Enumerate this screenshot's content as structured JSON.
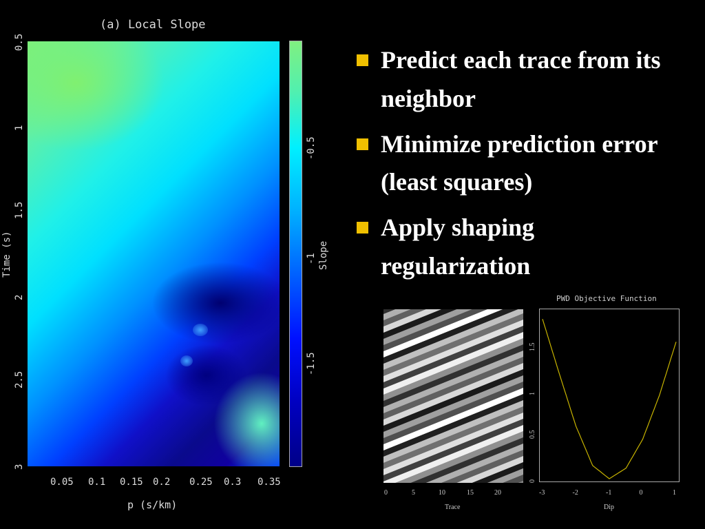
{
  "left_panel": {
    "title": "(a) Local Slope",
    "x_label": "p (s/km)",
    "y_label": "Time (s)",
    "x_ticks": [
      "0.05",
      "0.1",
      "0.15",
      "0.2",
      "0.25",
      "0.3",
      "0.35"
    ],
    "y_ticks": [
      "0.5",
      "1",
      "1.5",
      "2",
      "2.5",
      "3"
    ],
    "colorbar_label": "Slope",
    "colorbar_ticks": [
      "-0.5",
      "-1",
      "-1.5"
    ]
  },
  "bullets": [
    {
      "text": "Predict each trace from its neighbor"
    },
    {
      "text": "Minimize prediction error (least squares)"
    },
    {
      "text": "Apply shaping regularization"
    }
  ],
  "trace_panel": {
    "x_label": "Trace",
    "x_ticks": [
      "0",
      "5",
      "10",
      "15",
      "20"
    ]
  },
  "chart_data": {
    "type": "line",
    "title": "PWD Objective Function",
    "xlabel": "Dip",
    "ylabel": "",
    "x_ticks": [
      "-3",
      "-2",
      "-1",
      "0",
      "1"
    ],
    "y_ticks": [
      "0",
      "0.5",
      "1",
      "1.5"
    ],
    "xlim": [
      -3,
      1
    ],
    "ylim": [
      0,
      1.9
    ],
    "series": [
      {
        "x": [
          -3,
          -2.5,
          -2,
          -1.5,
          -1,
          -0.5,
          0,
          0.5,
          1
        ],
        "values": [
          1.82,
          1.2,
          0.6,
          0.15,
          0.0,
          0.12,
          0.45,
          0.95,
          1.56
        ],
        "color": "#c8b400"
      }
    ]
  }
}
